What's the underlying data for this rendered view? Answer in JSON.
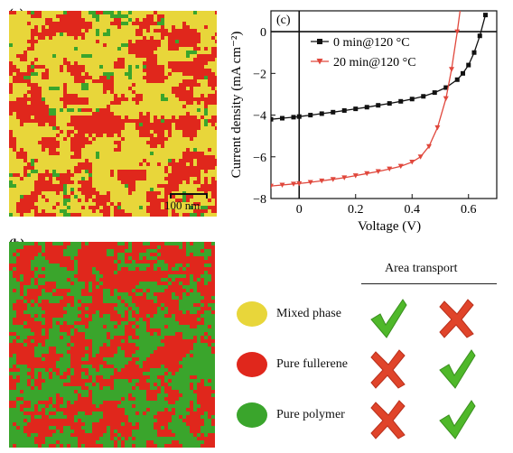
{
  "panels": {
    "a_label": "(a)",
    "b_label": "(b)",
    "c_label": "(c)",
    "scale_bar": "100 nm"
  },
  "colors": {
    "mixed": "#e8d63a",
    "fullerene": "#e0271c",
    "polymer": "#3aa52c",
    "series0": "#111111",
    "series1": "#e0473c",
    "check": "#4fb82a",
    "cross": "#e0442a"
  },
  "phase_maps": {
    "a": {
      "mixed": 0.45,
      "fullerene": 0.45,
      "polymer": 0.1
    },
    "b": {
      "mixed": 0.03,
      "fullerene": 0.62,
      "polymer": 0.35
    }
  },
  "chart_data": {
    "type": "line",
    "xlabel": "Voltage (V)",
    "ylabel": "Current density (mA cm⁻²)",
    "xlim": [
      -0.1,
      0.7
    ],
    "ylim": [
      -8,
      1
    ],
    "xticks": [
      "0",
      "0.2",
      "0.4",
      "0.6"
    ],
    "yticks": [
      "0",
      "−2",
      "−4",
      "−6",
      "−8"
    ],
    "legend_position": "top-right",
    "series": [
      {
        "name": "0 min@120 °C",
        "marker": "square",
        "x": [
          -0.1,
          -0.06,
          -0.02,
          0.0,
          0.04,
          0.08,
          0.12,
          0.16,
          0.2,
          0.24,
          0.28,
          0.32,
          0.36,
          0.4,
          0.44,
          0.48,
          0.52,
          0.56,
          0.58,
          0.6,
          0.62,
          0.64,
          0.66
        ],
        "y": [
          -4.2,
          -4.15,
          -4.1,
          -4.07,
          -4.0,
          -3.93,
          -3.86,
          -3.78,
          -3.7,
          -3.62,
          -3.53,
          -3.44,
          -3.34,
          -3.23,
          -3.1,
          -2.92,
          -2.68,
          -2.3,
          -2.0,
          -1.6,
          -1.0,
          -0.2,
          0.8
        ]
      },
      {
        "name": "20 min@120 °C",
        "marker": "triangle-down",
        "x": [
          -0.1,
          -0.06,
          -0.02,
          0.0,
          0.04,
          0.08,
          0.12,
          0.16,
          0.2,
          0.24,
          0.28,
          0.32,
          0.36,
          0.4,
          0.43,
          0.46,
          0.49,
          0.52,
          0.54,
          0.56,
          0.58
        ],
        "y": [
          -7.4,
          -7.35,
          -7.3,
          -7.28,
          -7.22,
          -7.15,
          -7.08,
          -7.0,
          -6.9,
          -6.8,
          -6.7,
          -6.58,
          -6.45,
          -6.25,
          -6.0,
          -5.5,
          -4.6,
          -3.2,
          -1.8,
          0.0,
          2.0
        ]
      }
    ]
  },
  "legend_table": {
    "header": "Area transport",
    "rows": [
      {
        "label": "Mixed phase",
        "color": "#e8d63a",
        "col1": "check",
        "col2": "cross"
      },
      {
        "label": "Pure fullerene",
        "color": "#e0271c",
        "col1": "cross",
        "col2": "check"
      },
      {
        "label": "Pure polymer",
        "color": "#3aa52c",
        "col1": "cross",
        "col2": "check"
      }
    ]
  }
}
